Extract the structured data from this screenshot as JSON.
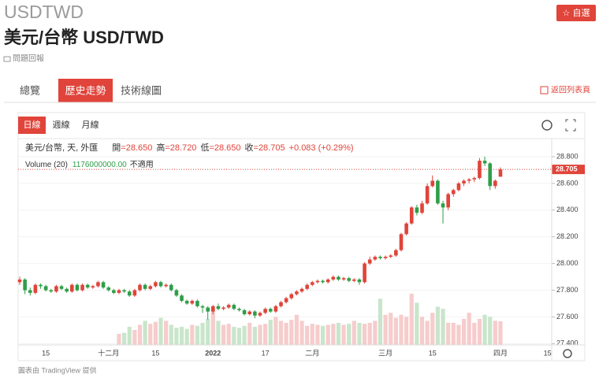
{
  "header": {
    "symbol": "USDTWD",
    "title": "美元/台幣 USD/TWD",
    "report": "問題回報",
    "watchlist": "自選"
  },
  "tabs": [
    "總覽",
    "歷史走勢",
    "技術線圖"
  ],
  "active_tab": 1,
  "back_link": "返回列表頁",
  "intervals": [
    "日線",
    "週線",
    "月線"
  ],
  "active_interval": 0,
  "footer": "圖表由 TradingView 提供",
  "chart_data": {
    "type": "candlestick",
    "series_name": "美元/台幣, 天, 外匯",
    "ohlc_legend": [
      {
        "label": "開",
        "value": "=28.650"
      },
      {
        "label": "高",
        "value": "=28.720"
      },
      {
        "label": "低",
        "value": "=28.650"
      },
      {
        "label": "收",
        "value": "=28.705"
      },
      {
        "value": "+0.083 (+0.29%)"
      }
    ],
    "volume_legend": {
      "label": "Volume (20)",
      "value": "1176000000.00",
      "note": "不適用"
    },
    "up_color": "#e0443a",
    "down_color": "#2e9e48",
    "up_volume_color": "#f6cccc",
    "down_volume_color": "#c9e5cb",
    "ylim": [
      27.39,
      28.924
    ],
    "yticks": [
      {
        "value": 27.4,
        "label": "27.400"
      },
      {
        "value": 27.6,
        "label": "27.600"
      },
      {
        "value": 27.8,
        "label": "27.800"
      },
      {
        "value": 28.0,
        "label": "28.000"
      },
      {
        "value": 28.2,
        "label": "28.200"
      },
      {
        "value": 28.4,
        "label": "28.400"
      },
      {
        "value": 28.6,
        "label": "28.600"
      },
      {
        "value": 28.8,
        "label": "28.800"
      }
    ],
    "grid": true,
    "last_price_line": true,
    "categories": [
      null,
      null,
      null,
      null,
      null,
      "15",
      null,
      null,
      null,
      null,
      null,
      null,
      null,
      null,
      null,
      null,
      null,
      "十二月",
      null,
      null,
      null,
      null,
      null,
      null,
      null,
      null,
      "15",
      null,
      null,
      null,
      null,
      null,
      null,
      null,
      null,
      null,
      null,
      "2022",
      null,
      null,
      null,
      null,
      null,
      null,
      null,
      null,
      null,
      "17",
      null,
      null,
      null,
      null,
      null,
      null,
      null,
      null,
      "二月",
      null,
      null,
      null,
      null,
      null,
      null,
      null,
      null,
      null,
      null,
      null,
      null,
      null,
      "三月",
      null,
      null,
      null,
      null,
      null,
      null,
      null,
      null,
      "15",
      null,
      null,
      null,
      null,
      null,
      null,
      null,
      null,
      null,
      null,
      null,
      null,
      "四月",
      null,
      null,
      null,
      null,
      null,
      null,
      null,
      null,
      "15"
    ],
    "candles": [
      [
        27.86,
        27.9,
        27.84,
        27.88
      ],
      [
        27.88,
        27.89,
        27.77,
        27.8
      ],
      [
        27.8,
        27.82,
        27.76,
        27.78
      ],
      [
        27.78,
        27.85,
        27.77,
        27.84
      ],
      [
        27.84,
        27.85,
        27.81,
        27.83
      ],
      [
        27.83,
        27.84,
        27.79,
        27.8
      ],
      [
        27.8,
        27.81,
        27.78,
        27.79
      ],
      [
        27.79,
        27.84,
        27.78,
        27.83
      ],
      [
        27.83,
        27.84,
        27.8,
        27.81
      ],
      [
        27.81,
        27.82,
        27.78,
        27.79
      ],
      [
        27.79,
        27.85,
        27.78,
        27.84
      ],
      [
        27.84,
        27.85,
        27.79,
        27.8
      ],
      [
        27.8,
        27.85,
        27.79,
        27.84
      ],
      [
        27.84,
        27.85,
        27.81,
        27.82
      ],
      [
        27.82,
        27.84,
        27.81,
        27.83
      ],
      [
        27.83,
        27.87,
        27.82,
        27.86
      ],
      [
        27.86,
        27.87,
        27.81,
        27.82
      ],
      [
        27.82,
        27.83,
        27.79,
        27.8
      ],
      [
        27.8,
        27.81,
        27.77,
        27.78
      ],
      [
        27.78,
        27.81,
        27.77,
        27.8
      ],
      [
        27.8,
        27.81,
        27.78,
        27.79
      ],
      [
        27.79,
        27.8,
        27.75,
        27.76
      ],
      [
        27.76,
        27.81,
        27.75,
        27.8
      ],
      [
        27.8,
        27.85,
        27.79,
        27.84
      ],
      [
        27.84,
        27.85,
        27.8,
        27.81
      ],
      [
        27.81,
        27.84,
        27.8,
        27.83
      ],
      [
        27.83,
        27.87,
        27.82,
        27.86
      ],
      [
        27.86,
        27.87,
        27.82,
        27.83
      ],
      [
        27.83,
        27.85,
        27.82,
        27.84
      ],
      [
        27.84,
        27.85,
        27.79,
        27.8
      ],
      [
        27.8,
        27.81,
        27.75,
        27.76
      ],
      [
        27.76,
        27.77,
        27.71,
        27.72
      ],
      [
        27.72,
        27.73,
        27.69,
        27.7
      ],
      [
        27.7,
        27.73,
        27.69,
        27.72
      ],
      [
        27.72,
        27.73,
        27.67,
        27.68
      ],
      [
        27.68,
        27.69,
        27.63,
        27.67
      ],
      [
        27.67,
        27.68,
        27.58,
        27.64
      ],
      [
        27.64,
        27.69,
        27.62,
        27.68
      ],
      [
        27.68,
        27.7,
        27.65,
        27.66
      ],
      [
        27.66,
        27.68,
        27.65,
        27.67
      ],
      [
        27.67,
        27.7,
        27.66,
        27.69
      ],
      [
        27.69,
        27.7,
        27.65,
        27.66
      ],
      [
        27.66,
        27.67,
        27.64,
        27.65
      ],
      [
        27.65,
        27.66,
        27.61,
        27.62
      ],
      [
        27.62,
        27.65,
        27.61,
        27.64
      ],
      [
        27.64,
        27.65,
        27.59,
        27.61
      ],
      [
        27.61,
        27.64,
        27.6,
        27.63
      ],
      [
        27.63,
        27.67,
        27.62,
        27.66
      ],
      [
        27.66,
        27.67,
        27.63,
        27.64
      ],
      [
        27.64,
        27.69,
        27.63,
        27.68
      ],
      [
        27.68,
        27.72,
        27.67,
        27.71
      ],
      [
        27.71,
        27.75,
        27.7,
        27.74
      ],
      [
        27.74,
        27.78,
        27.73,
        27.77
      ],
      [
        27.77,
        27.8,
        27.76,
        27.79
      ],
      [
        27.79,
        27.82,
        27.78,
        27.81
      ],
      [
        27.81,
        27.85,
        27.8,
        27.84
      ],
      [
        27.84,
        27.87,
        27.83,
        27.86
      ],
      [
        27.86,
        27.88,
        27.85,
        27.87
      ],
      [
        27.87,
        27.88,
        27.85,
        27.86
      ],
      [
        27.86,
        27.89,
        27.85,
        27.88
      ],
      [
        27.88,
        27.91,
        27.87,
        27.9
      ],
      [
        27.9,
        27.91,
        27.87,
        27.88
      ],
      [
        27.88,
        27.9,
        27.87,
        27.89
      ],
      [
        27.89,
        27.9,
        27.86,
        27.87
      ],
      [
        27.87,
        27.89,
        27.86,
        27.88
      ],
      [
        27.88,
        27.89,
        27.84,
        27.86
      ],
      [
        27.86,
        28.01,
        27.85,
        28.0
      ],
      [
        28.0,
        28.05,
        27.99,
        28.03
      ],
      [
        28.03,
        28.06,
        28.02,
        28.05
      ],
      [
        28.05,
        28.06,
        28.03,
        28.04
      ],
      [
        28.04,
        28.06,
        28.03,
        28.05
      ],
      [
        28.05,
        28.07,
        28.04,
        28.06
      ],
      [
        28.06,
        28.11,
        28.05,
        28.1
      ],
      [
        28.1,
        28.23,
        28.09,
        28.22
      ],
      [
        28.22,
        28.31,
        28.21,
        28.3
      ],
      [
        28.3,
        28.43,
        28.29,
        28.42
      ],
      [
        28.42,
        28.44,
        28.36,
        28.38
      ],
      [
        28.38,
        28.47,
        28.37,
        28.45
      ],
      [
        28.45,
        28.6,
        28.44,
        28.58
      ],
      [
        28.58,
        28.66,
        28.57,
        28.62
      ],
      [
        28.62,
        28.63,
        28.44,
        28.45
      ],
      [
        28.45,
        28.47,
        28.3,
        28.42
      ],
      [
        28.42,
        28.53,
        28.4,
        28.52
      ],
      [
        28.52,
        28.56,
        28.5,
        28.55
      ],
      [
        28.55,
        28.61,
        28.54,
        28.6
      ],
      [
        28.6,
        28.63,
        28.58,
        28.62
      ],
      [
        28.62,
        28.64,
        28.6,
        28.63
      ],
      [
        28.63,
        28.65,
        28.61,
        28.64
      ],
      [
        28.64,
        28.79,
        28.63,
        28.77
      ],
      [
        28.77,
        28.8,
        28.73,
        28.75
      ],
      [
        28.75,
        28.76,
        28.55,
        28.58
      ],
      [
        28.58,
        28.63,
        28.56,
        28.62
      ],
      [
        28.65,
        28.72,
        28.65,
        28.705
      ],
      null,
      null,
      null,
      null,
      null,
      null,
      null,
      null,
      null
    ],
    "volumes": [
      null,
      null,
      null,
      null,
      null,
      null,
      null,
      null,
      null,
      null,
      null,
      null,
      null,
      null,
      null,
      null,
      null,
      null,
      null,
      550000000,
      600000000,
      900000000,
      750000000,
      1000000000,
      1200000000,
      1050000000,
      1150000000,
      1350000000,
      1200000000,
      1000000000,
      850000000,
      900000000,
      800000000,
      1000000000,
      950000000,
      1100000000,
      1300000000,
      1700000000,
      1200000000,
      1000000000,
      1050000000,
      900000000,
      850000000,
      950000000,
      1100000000,
      900000000,
      1000000000,
      1050000000,
      1250000000,
      1400000000,
      1200000000,
      1100000000,
      1250000000,
      1500000000,
      1200000000,
      950000000,
      1050000000,
      1000000000,
      950000000,
      1000000000,
      1050000000,
      1100000000,
      1000000000,
      1050000000,
      1200000000,
      1100000000,
      1050000000,
      1100000000,
      1200000000,
      2300000000,
      1500000000,
      1600000000,
      1350000000,
      1500000000,
      1400000000,
      2550000000,
      2100000000,
      1400000000,
      1200000000,
      1600000000,
      1900000000,
      1800000000,
      1100000000,
      1100000000,
      1000000000,
      1300000000,
      1600000000,
      1100000000,
      1300000000,
      1500000000,
      1400000000,
      1200000000,
      1176000000,
      null,
      null,
      null,
      null,
      null,
      null,
      null,
      null,
      null
    ]
  }
}
